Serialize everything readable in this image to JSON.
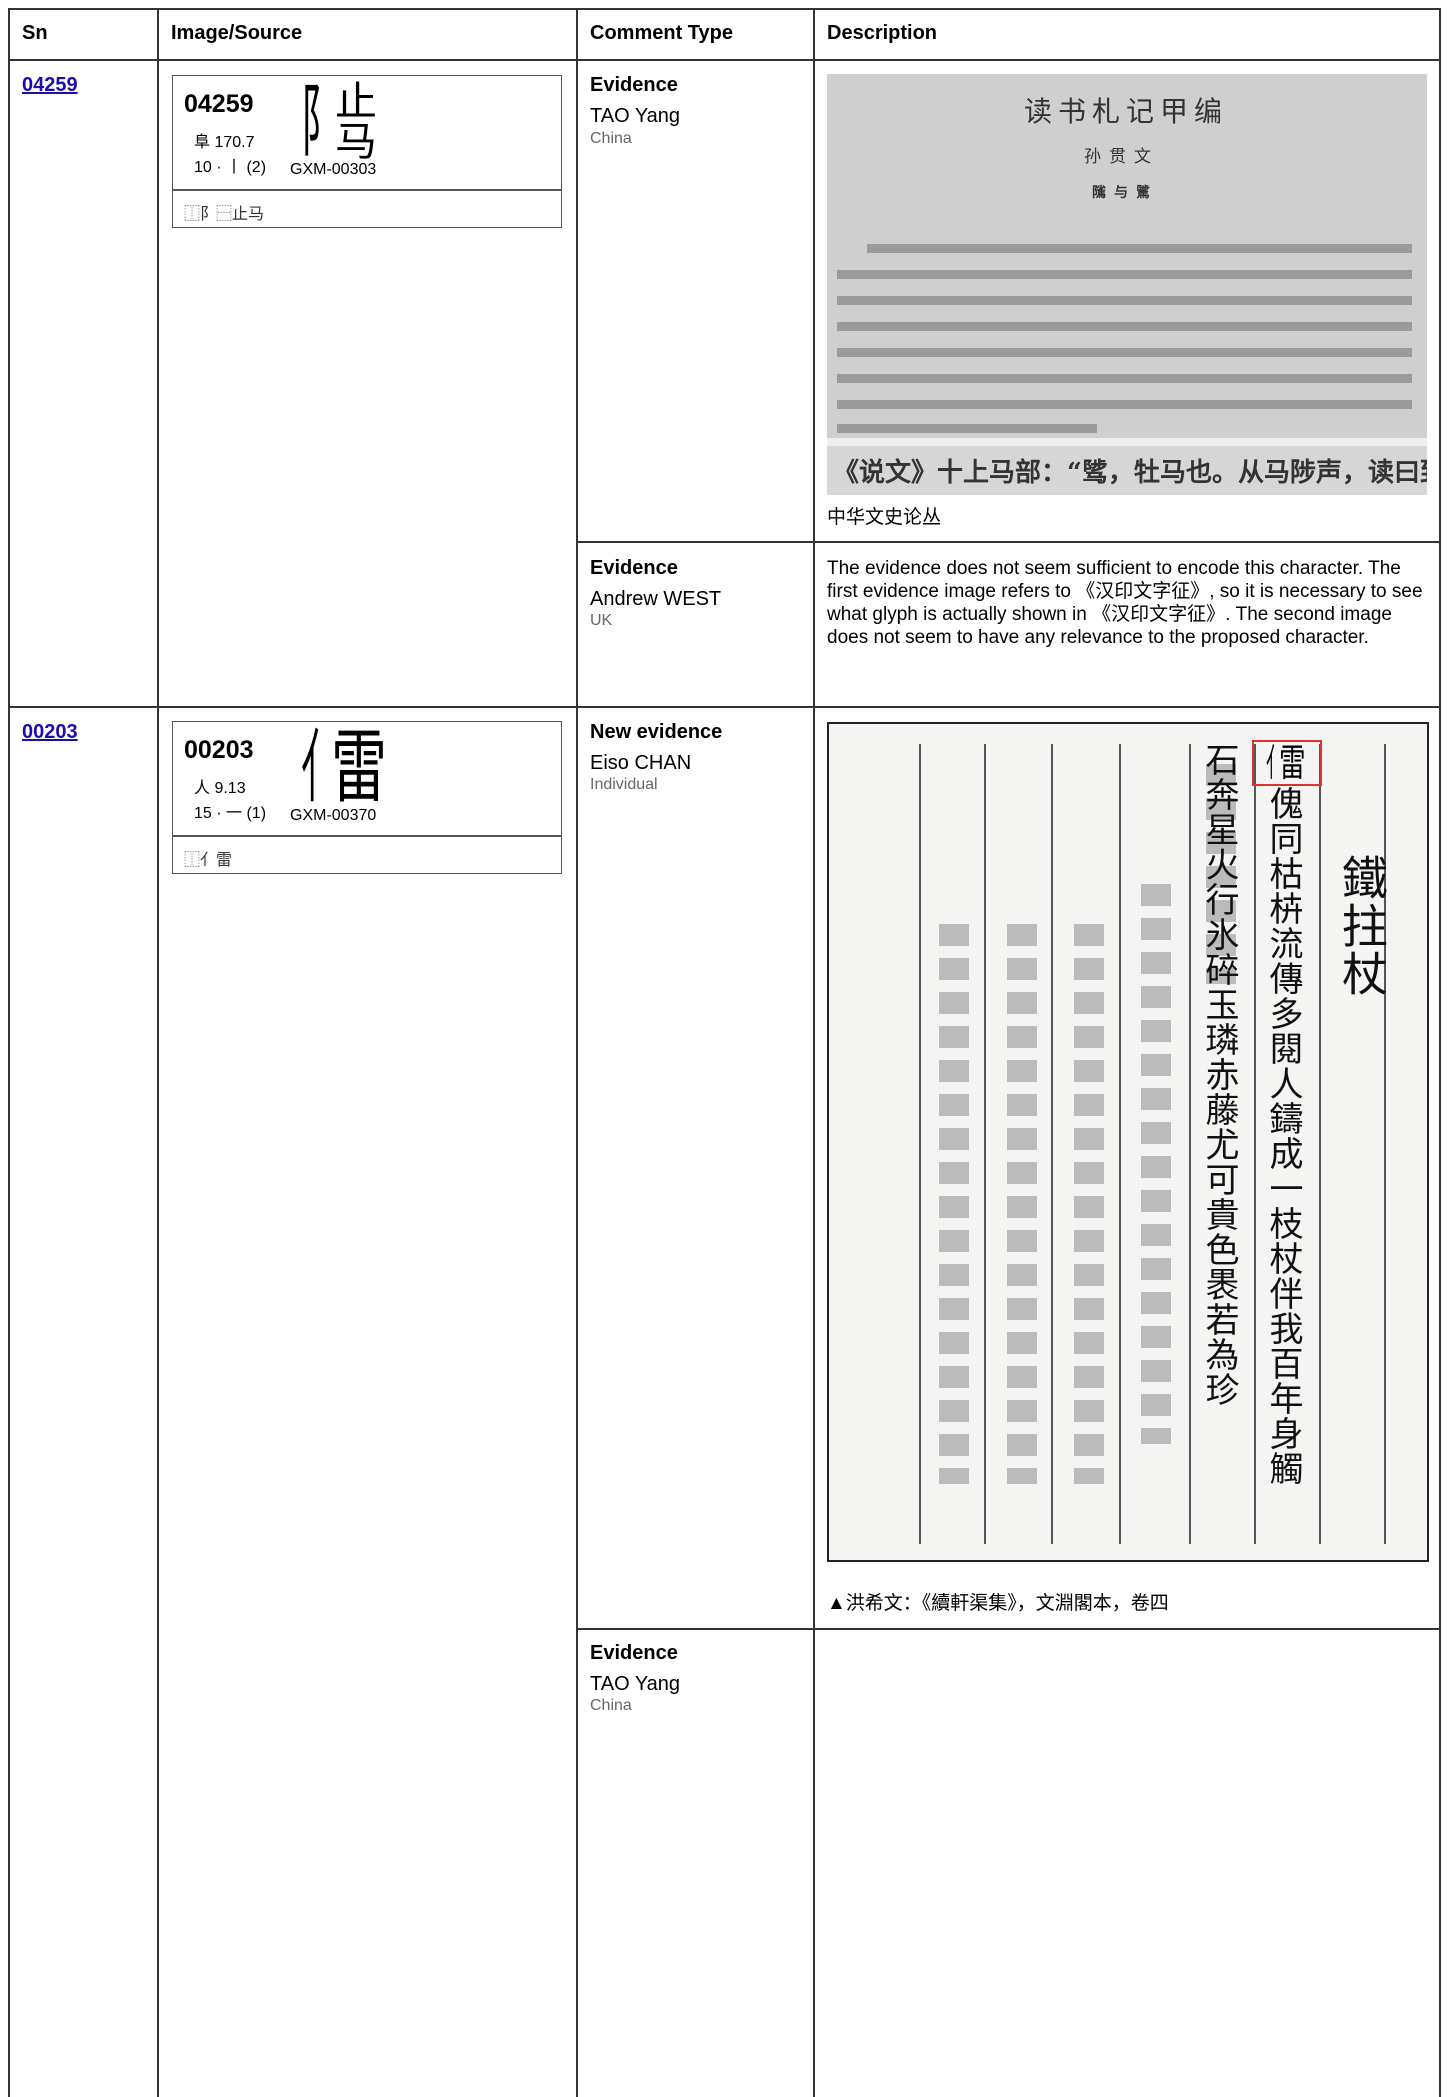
{
  "header": {
    "columns": [
      "Sn",
      "Image/Source",
      "Comment Type",
      "Description"
    ]
  },
  "rows": [
    {
      "sn": "04259",
      "card": {
        "code": "04259",
        "radical": "阜 170.7",
        "strokes": "10 · 丨 (2)",
        "source": "GXM-00303",
        "glyph_parts": [
          "阝",
          "止",
          "马"
        ],
        "ids": "⿰阝⿱止马"
      },
      "comments": [
        {
          "type": "Evidence",
          "name": "TAO Yang",
          "country": "China",
          "image": {
            "title": "读书札记甲编",
            "author": "孙贯文",
            "heading": "隲与騭",
            "quote": "《说文》十上马部：“骘，牡马也。从马陟声，读曰郅。”"
          },
          "caption": "中华文史论丛"
        },
        {
          "type": "Evidence",
          "name": "Andrew WEST",
          "country": "UK",
          "description": "The evidence does not seem sufficient to encode this character. The first evidence image refers to 《汉印文字征》, so it is necessary to see what glyph is actually shown in 《汉印文字征》. The second image does not seem to have any relevance to the proposed character."
        }
      ]
    },
    {
      "sn": "00203",
      "card": {
        "code": "00203",
        "radical": "人 9.13",
        "strokes": "15 · 一 (1)",
        "source": "GXM-00370",
        "glyph_parts": [
          "亻",
          "雷"
        ],
        "ids": "⿰亻雷"
      },
      "comments": [
        {
          "type": "New evidence",
          "name": "Eiso CHAN",
          "country": "Individual",
          "image": {
            "title": "鐵拄杖",
            "columns": [
              "傀同枯枿流傳多閱人鑄成一枝杖伴我百年身觸",
              "石奔星火行氷碎玉璘赤藤尤可貴色褁若為珍"
            ]
          },
          "caption": "▲洪希文：《續軒渠集》，文淵閣本，卷四"
        },
        {
          "type": "Evidence",
          "name": "TAO Yang",
          "country": "China"
        }
      ]
    }
  ]
}
